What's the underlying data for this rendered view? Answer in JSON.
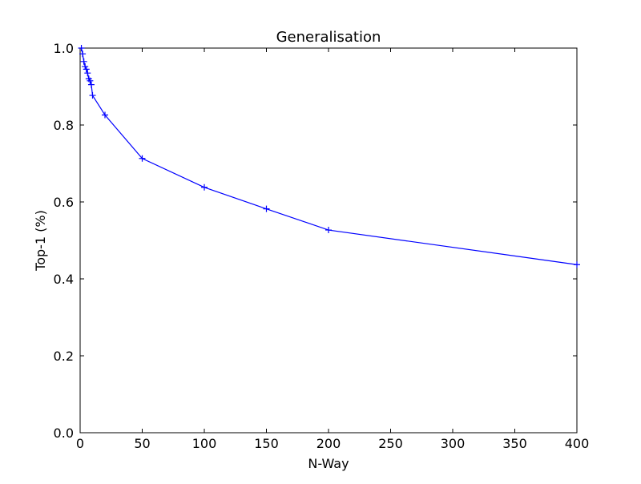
{
  "chart_data": {
    "type": "line",
    "title": "Generalisation",
    "xlabel": "N-Way",
    "ylabel": "Top-1 (%)",
    "xlim": [
      0,
      400
    ],
    "ylim": [
      0.0,
      1.0
    ],
    "x_ticks": [
      0,
      50,
      100,
      150,
      200,
      250,
      300,
      350,
      400
    ],
    "x_tick_labels": [
      "0",
      "50",
      "100",
      "150",
      "200",
      "250",
      "300",
      "350",
      "400"
    ],
    "y_ticks": [
      0.0,
      0.2,
      0.4,
      0.6,
      0.8,
      1.0
    ],
    "y_tick_labels": [
      "0.0",
      "0.2",
      "0.4",
      "0.6",
      "0.8",
      "1.0"
    ],
    "grid": false,
    "marker": "+",
    "series": [
      {
        "color": "#0000ff",
        "x": [
          1,
          2,
          3,
          4,
          5,
          6,
          7,
          8,
          9,
          10,
          20,
          50,
          100,
          150,
          200,
          400
        ],
        "y": [
          1.0,
          0.985,
          0.965,
          0.952,
          0.945,
          0.935,
          0.92,
          0.915,
          0.905,
          0.877,
          0.826,
          0.713,
          0.638,
          0.582,
          0.527,
          0.437
        ]
      }
    ]
  }
}
